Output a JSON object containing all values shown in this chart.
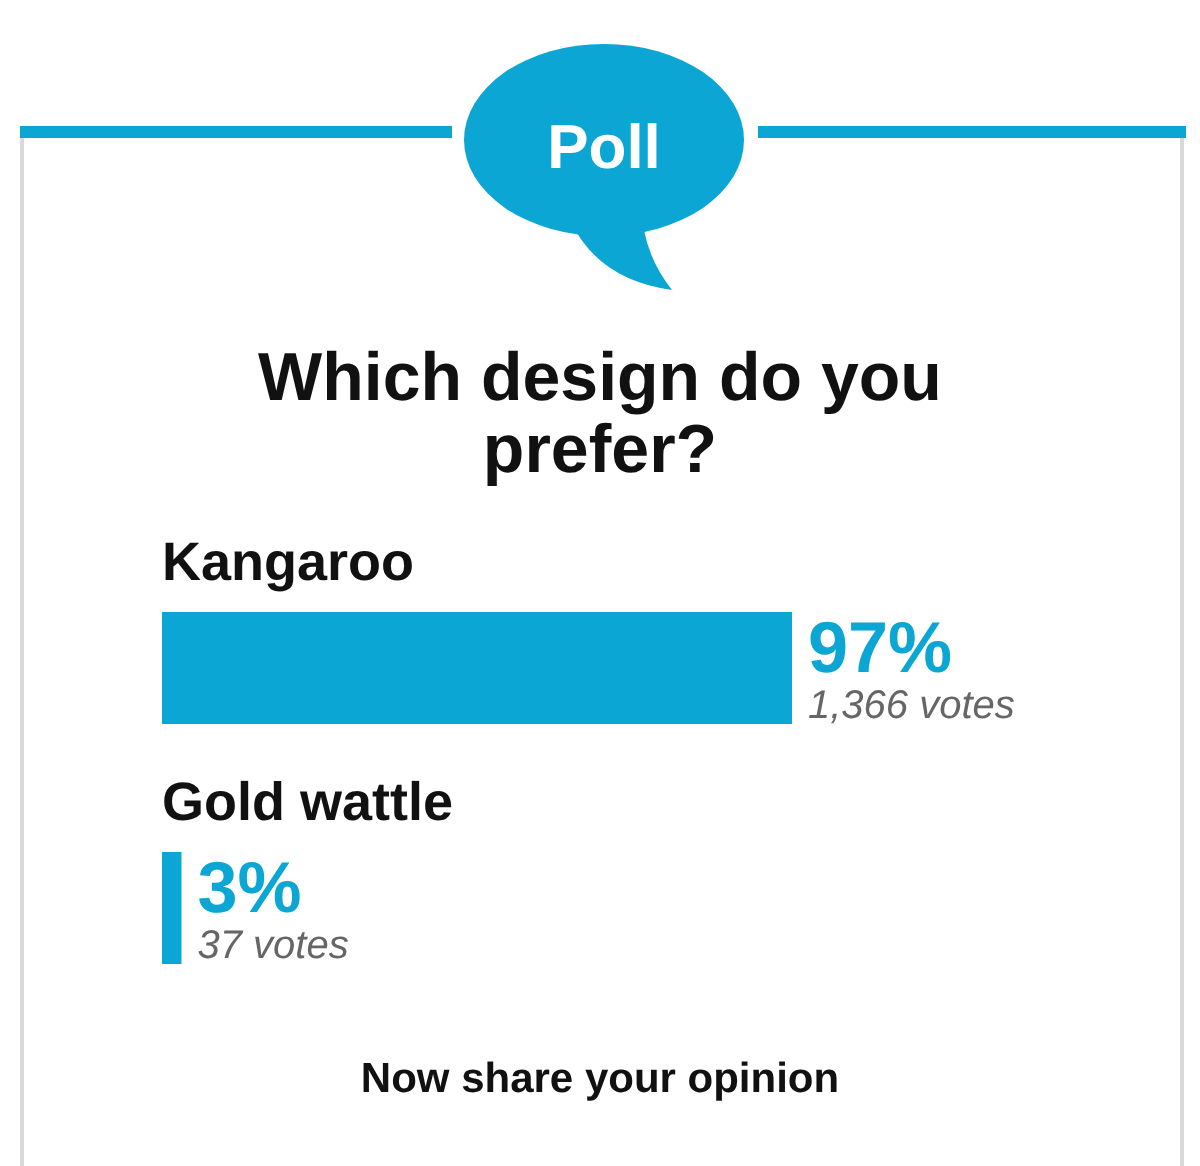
{
  "chart_data": {
    "type": "bar",
    "orientation": "horizontal",
    "title": "Which design do you prefer?",
    "categories": [
      "Kangaroo",
      "Gold wattle"
    ],
    "values": [
      97,
      3
    ],
    "value_labels": [
      "97%",
      "3%"
    ],
    "color": "#0ba6d4",
    "annotations": [
      "Poll",
      {
        "text": "1,366 votes",
        "x": 97,
        "y": "Kangaroo"
      },
      {
        "text": "37 votes",
        "x": 3,
        "y": "Gold wattle"
      },
      "Now share your opinion"
    ]
  }
}
